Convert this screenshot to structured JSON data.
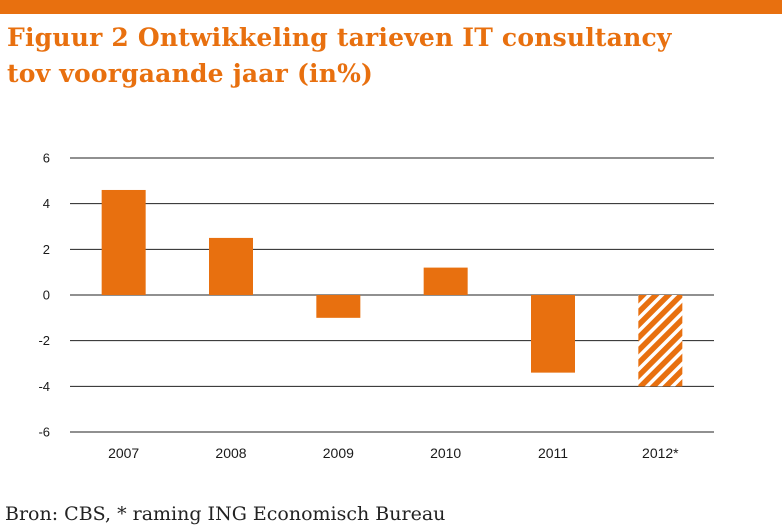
{
  "colors": {
    "accent": "#E8700F",
    "gridline": "#222222",
    "text": "#1a1a1a",
    "hatch_light": "#ffffff"
  },
  "title": {
    "line1": "Figuur 2 Ontwikkeling tarieven IT consultancy",
    "line2": "tov voorgaande jaar (in%)"
  },
  "source": "Bron: CBS, * raming ING Economisch Bureau",
  "chart_data": {
    "type": "bar",
    "title": "Figuur 2 Ontwikkeling tarieven IT consultancy tov voorgaande jaar (in%)",
    "categories": [
      "2007",
      "2008",
      "2009",
      "2010",
      "2011",
      "2012*"
    ],
    "values": [
      4.6,
      2.5,
      -1.0,
      1.2,
      -3.4,
      -4.0
    ],
    "hatched": [
      false,
      false,
      false,
      false,
      false,
      true
    ],
    "xlabel": "",
    "ylabel": "",
    "ylim": [
      -6,
      6
    ],
    "yticks": [
      6,
      4,
      2,
      0,
      -2,
      -4,
      -6
    ],
    "grid": true,
    "legend": "none"
  }
}
